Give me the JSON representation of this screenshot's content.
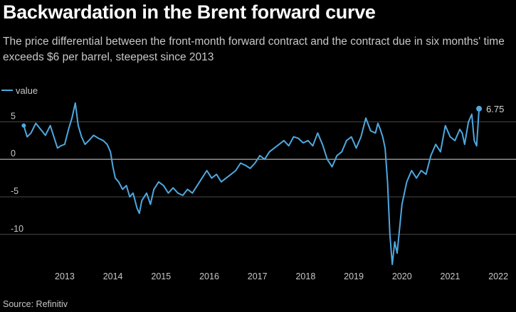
{
  "title": "Backwardation in the Brent forward curve",
  "subtitle": "The price differential between the front-month forward contract and the contract due in six months' time exceeds $6 per barrel, steepest since 2013",
  "source": "Source: Refinitiv",
  "colors": {
    "line": "#4ea8e0",
    "grid": "#4a4a4a",
    "zero": "#d8d8d8",
    "background": "#000000"
  },
  "chart_data": {
    "type": "line",
    "title": "Backwardation in the Brent forward curve",
    "legend": {
      "entries": [
        "value"
      ],
      "placement": "top-left"
    },
    "x_ticks": [
      "2013",
      "2014",
      "2015",
      "2016",
      "2017",
      "2018",
      "2019",
      "2020",
      "2021",
      "2022"
    ],
    "y_ticks": [
      "5",
      "0",
      "-5",
      "-10"
    ],
    "ylim": [
      -14,
      7.5
    ],
    "xlim": [
      2012.6,
      2022.35
    ],
    "grid": true,
    "end_label": "6.75",
    "series": [
      {
        "name": "value",
        "x": [
          2012.65,
          2012.72,
          2012.8,
          2012.9,
          2013.0,
          2013.1,
          2013.2,
          2013.3,
          2013.35,
          2013.42,
          2013.5,
          2013.58,
          2013.65,
          2013.72,
          2013.78,
          2013.85,
          2013.92,
          2014.0,
          2014.1,
          2014.2,
          2014.3,
          2014.38,
          2014.45,
          2014.5,
          2014.55,
          2014.62,
          2014.7,
          2014.78,
          2014.85,
          2014.92,
          2015.0,
          2015.05,
          2015.1,
          2015.2,
          2015.28,
          2015.35,
          2015.45,
          2015.55,
          2015.65,
          2015.75,
          2015.85,
          2015.95,
          2016.05,
          2016.15,
          2016.25,
          2016.35,
          2016.45,
          2016.55,
          2016.65,
          2016.75,
          2016.85,
          2016.95,
          2017.05,
          2017.15,
          2017.25,
          2017.35,
          2017.45,
          2017.55,
          2017.65,
          2017.75,
          2017.85,
          2017.95,
          2018.05,
          2018.15,
          2018.25,
          2018.35,
          2018.45,
          2018.55,
          2018.65,
          2018.75,
          2018.85,
          2018.95,
          2019.05,
          2019.15,
          2019.25,
          2019.35,
          2019.45,
          2019.55,
          2019.65,
          2019.75,
          2019.85,
          2019.95,
          2020.0,
          2020.05,
          2020.1,
          2020.15,
          2020.2,
          2020.25,
          2020.3,
          2020.35,
          2020.4,
          2020.5,
          2020.6,
          2020.7,
          2020.8,
          2020.9,
          2021.0,
          2021.1,
          2021.2,
          2021.3,
          2021.4,
          2021.5,
          2021.6,
          2021.7,
          2021.75,
          2021.8,
          2021.88,
          2021.95,
          2022.0,
          2022.05,
          2022.1
        ],
        "values": [
          4.5,
          3.0,
          3.5,
          4.8,
          4.0,
          3.2,
          4.5,
          2.5,
          1.5,
          1.8,
          2.0,
          4.0,
          5.5,
          7.5,
          4.5,
          3.0,
          2.0,
          2.5,
          3.2,
          2.8,
          2.5,
          2.0,
          1.0,
          -1.0,
          -2.5,
          -3.0,
          -4.0,
          -3.5,
          -5.0,
          -4.5,
          -6.5,
          -7.2,
          -5.5,
          -4.5,
          -6.0,
          -4.0,
          -3.0,
          -3.5,
          -4.5,
          -3.8,
          -4.5,
          -4.8,
          -4.0,
          -4.5,
          -3.5,
          -2.5,
          -1.5,
          -2.5,
          -2.0,
          -3.0,
          -2.5,
          -2.0,
          -1.5,
          -0.5,
          -0.8,
          -1.2,
          -0.5,
          0.5,
          0.0,
          1.0,
          1.5,
          2.0,
          2.5,
          1.8,
          3.0,
          2.8,
          2.2,
          2.5,
          1.8,
          3.5,
          2.0,
          0.0,
          -1.0,
          0.5,
          1.0,
          2.5,
          3.0,
          1.5,
          3.0,
          5.5,
          3.8,
          3.5,
          4.8,
          4.0,
          3.0,
          1.5,
          -3.0,
          -10.0,
          -14.0,
          -11.0,
          -12.5,
          -6.0,
          -3.0,
          -1.5,
          -2.5,
          -1.5,
          -2.0,
          0.5,
          2.0,
          1.0,
          4.5,
          3.0,
          2.5,
          4.0,
          3.5,
          2.0,
          5.0,
          6.0,
          2.5,
          1.8,
          6.75
        ]
      }
    ]
  }
}
